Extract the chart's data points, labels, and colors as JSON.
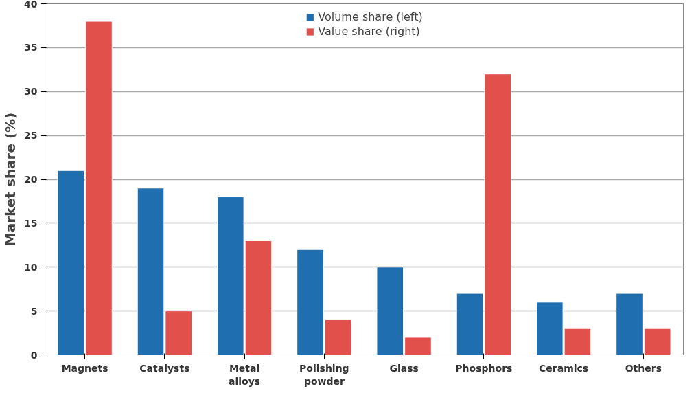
{
  "chart_data": {
    "type": "bar",
    "ylabel": "Market share (%)",
    "categories": [
      "Magnets",
      "Catalysts",
      "Metal alloys",
      "Polishing powder",
      "Glass",
      "Phosphors",
      "Ceramics",
      "Others"
    ],
    "series": [
      {
        "name": "Volume share (left)",
        "color": "#1f6eb0",
        "values": [
          21,
          19,
          18,
          12,
          10,
          7,
          6,
          7
        ]
      },
      {
        "name": "Value share (right)",
        "color": "#e2504b",
        "values": [
          38,
          5,
          13,
          4,
          2,
          32,
          3,
          3
        ]
      }
    ],
    "ylim": [
      0,
      40
    ],
    "yticks": [
      0,
      5,
      10,
      15,
      20,
      25,
      30,
      35,
      40
    ],
    "grid": "y",
    "legend": "top"
  }
}
